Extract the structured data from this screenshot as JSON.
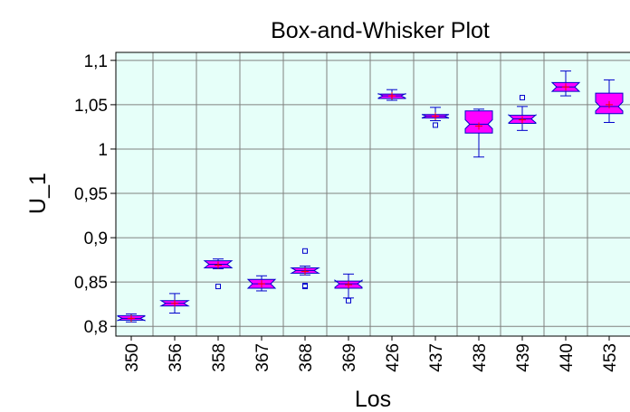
{
  "chart_data": {
    "type": "box",
    "title": "Box-and-Whisker Plot",
    "x_label": "Los",
    "y_label": "U_1",
    "categories": [
      "350",
      "356",
      "358",
      "367",
      "368",
      "369",
      "426",
      "437",
      "438",
      "439",
      "440",
      "453"
    ],
    "boxes": [
      {
        "min": 0.805,
        "q1": 0.807,
        "median": 0.809,
        "q3": 0.812,
        "max": 0.814,
        "mean": 0.809,
        "outliers": []
      },
      {
        "min": 0.815,
        "q1": 0.823,
        "median": 0.826,
        "q3": 0.829,
        "max": 0.837,
        "mean": 0.826,
        "outliers": []
      },
      {
        "min": 0.865,
        "q1": 0.866,
        "median": 0.87,
        "q3": 0.874,
        "max": 0.876,
        "mean": 0.869,
        "outliers": [
          0.845
        ]
      },
      {
        "min": 0.84,
        "q1": 0.843,
        "median": 0.848,
        "q3": 0.853,
        "max": 0.857,
        "mean": 0.848,
        "outliers": []
      },
      {
        "min": 0.858,
        "q1": 0.86,
        "median": 0.863,
        "q3": 0.866,
        "max": 0.868,
        "mean": 0.862,
        "outliers": [
          0.845,
          0.846,
          0.885
        ]
      },
      {
        "min": 0.832,
        "q1": 0.843,
        "median": 0.848,
        "q3": 0.851,
        "max": 0.859,
        "mean": 0.847,
        "outliers": [
          0.829
        ]
      },
      {
        "min": 1.055,
        "q1": 1.057,
        "median": 1.06,
        "q3": 1.062,
        "max": 1.067,
        "mean": 1.06,
        "outliers": []
      },
      {
        "min": 1.032,
        "q1": 1.035,
        "median": 1.037,
        "q3": 1.039,
        "max": 1.047,
        "mean": 1.037,
        "outliers": [
          1.027
        ]
      },
      {
        "min": 0.991,
        "q1": 1.018,
        "median": 1.028,
        "q3": 1.043,
        "max": 1.045,
        "mean": 1.026,
        "outliers": []
      },
      {
        "min": 1.021,
        "q1": 1.029,
        "median": 1.034,
        "q3": 1.038,
        "max": 1.048,
        "mean": 1.033,
        "outliers": [
          1.058
        ]
      },
      {
        "min": 1.06,
        "q1": 1.065,
        "median": 1.07,
        "q3": 1.075,
        "max": 1.088,
        "mean": 1.07,
        "outliers": []
      },
      {
        "min": 1.03,
        "q1": 1.04,
        "median": 1.048,
        "q3": 1.063,
        "max": 1.078,
        "mean": 1.05,
        "outliers": []
      }
    ],
    "ylim": [
      0.789,
      1.109
    ],
    "yticks": [
      {
        "value": 0.8,
        "label": "0,8"
      },
      {
        "value": 0.85,
        "label": "0,85"
      },
      {
        "value": 0.9,
        "label": "0,9"
      },
      {
        "value": 0.95,
        "label": "0,95"
      },
      1,
      {
        "value": 1.05,
        "label": "1,05"
      },
      {
        "value": 1.1,
        "label": "1,1"
      }
    ],
    "grid": true,
    "box_color": "#ff00ff",
    "edge_color": "#0000cc",
    "mean_color": "#ff0000",
    "background": "#e6fff9"
  }
}
